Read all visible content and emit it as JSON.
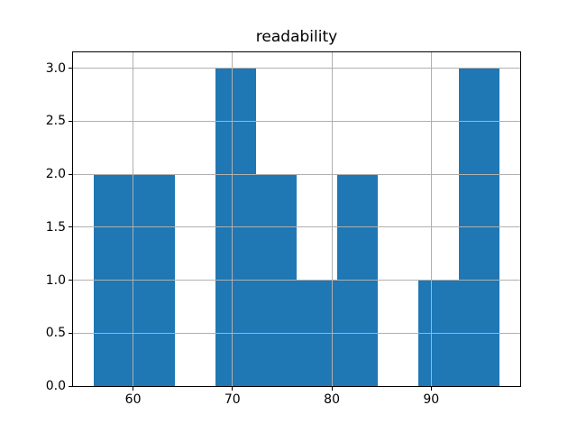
{
  "chart_data": {
    "type": "bar",
    "subtype": "histogram",
    "title": "readability",
    "bin_edges": [
      56.0,
      60.09,
      64.18,
      68.27,
      72.36,
      76.45,
      80.54,
      84.63,
      88.72,
      92.81,
      96.9
    ],
    "counts": [
      2,
      2,
      0,
      3,
      2,
      1,
      2,
      0,
      1,
      3
    ],
    "xlim": [
      53.96,
      98.95
    ],
    "ylim": [
      0,
      3.15
    ],
    "xticks": [
      60,
      70,
      80,
      90
    ],
    "xtick_labels": [
      "60",
      "70",
      "80",
      "90"
    ],
    "yticks": [
      0.0,
      0.5,
      1.0,
      1.5,
      2.0,
      2.5,
      3.0
    ],
    "ytick_labels": [
      "0.0",
      "0.5",
      "1.0",
      "1.5",
      "2.0",
      "2.5",
      "3.0"
    ],
    "grid": true,
    "grid_above_bars": true,
    "colors": {
      "bar": "#1f77b4",
      "grid": "#b0b0b0",
      "spine": "#000000",
      "tick": "#000000",
      "text": "#000000",
      "background": "#ffffff"
    }
  }
}
